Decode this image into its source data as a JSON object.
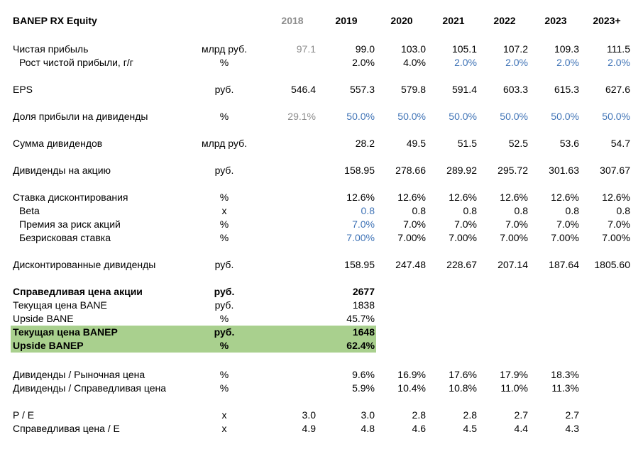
{
  "sheet": {
    "title": "BANEP RX Equity",
    "years": [
      "2018",
      "2019",
      "2020",
      "2021",
      "2022",
      "2023",
      "2023+"
    ],
    "colors": {
      "highlight": "#a9d08e",
      "input_blue": "#3f73b6",
      "muted_grey": "#8c8c8c"
    },
    "rows": {
      "net_profit": {
        "label": "Чистая прибыль",
        "unit": "млрд руб.",
        "values": [
          "97.1",
          "99.0",
          "103.0",
          "105.1",
          "107.2",
          "109.3",
          "111.5"
        ]
      },
      "net_profit_growth": {
        "label": "Рост чистой прибыли, г/г",
        "unit": "%",
        "values": [
          "",
          "2.0%",
          "4.0%",
          "2.0%",
          "2.0%",
          "2.0%",
          "2.0%"
        ]
      },
      "eps": {
        "label": "EPS",
        "unit": "руб.",
        "values": [
          "546.4",
          "557.3",
          "579.8",
          "591.4",
          "603.3",
          "615.3",
          "627.6"
        ]
      },
      "payout_ratio": {
        "label": "Доля прибыли на дивиденды",
        "unit": "%",
        "values": [
          "29.1%",
          "50.0%",
          "50.0%",
          "50.0%",
          "50.0%",
          "50.0%",
          "50.0%"
        ]
      },
      "dividends_total": {
        "label": "Сумма дивидендов",
        "unit": "млрд руб.",
        "values": [
          "",
          "28.2",
          "49.5",
          "51.5",
          "52.5",
          "53.6",
          "54.7"
        ]
      },
      "dividends_per_share": {
        "label": "Дивиденды на акцию",
        "unit": "руб.",
        "values": [
          "",
          "158.95",
          "278.66",
          "289.92",
          "295.72",
          "301.63",
          "307.67"
        ]
      },
      "discount_rate": {
        "label": "Ставка дисконтирования",
        "unit": "%",
        "values": [
          "",
          "12.6%",
          "12.6%",
          "12.6%",
          "12.6%",
          "12.6%",
          "12.6%"
        ]
      },
      "beta": {
        "label": "Beta",
        "unit": "x",
        "values": [
          "",
          "0.8",
          "0.8",
          "0.8",
          "0.8",
          "0.8",
          "0.8"
        ]
      },
      "equity_risk_premium": {
        "label": "Премия за риск акций",
        "unit": "%",
        "values": [
          "",
          "7.0%",
          "7.0%",
          "7.0%",
          "7.0%",
          "7.0%",
          "7.0%"
        ]
      },
      "risk_free_rate": {
        "label": "Безрисковая ставка",
        "unit": "%",
        "values": [
          "",
          "7.00%",
          "7.00%",
          "7.00%",
          "7.00%",
          "7.00%",
          "7.00%"
        ]
      },
      "discounted_dividends": {
        "label": "Дисконтированные дивиденды",
        "unit": "руб.",
        "values": [
          "",
          "158.95",
          "247.48",
          "228.67",
          "207.14",
          "187.64",
          "1805.60"
        ]
      },
      "fair_price": {
        "label": "Справедливая цена акции",
        "unit": "руб.",
        "value": "2677"
      },
      "price_bane": {
        "label": "Текущая цена BANE",
        "unit": "руб.",
        "value": "1838"
      },
      "upside_bane": {
        "label": "Upside BANE",
        "unit": "%",
        "value": "45.7%"
      },
      "price_banep": {
        "label": "Текущая цена BANEP",
        "unit": "руб.",
        "value": "1648"
      },
      "upside_banep": {
        "label": "Upside BANEP",
        "unit": "%",
        "value": "62.4%"
      },
      "div_market_price": {
        "label": "Дивиденды / Рыночная цена",
        "unit": "%",
        "values": [
          "",
          "9.6%",
          "16.9%",
          "17.6%",
          "17.9%",
          "18.3%",
          ""
        ]
      },
      "div_fair_price": {
        "label": "Дивиденды / Справедливая цена",
        "unit": "%",
        "values": [
          "",
          "5.9%",
          "10.4%",
          "10.8%",
          "11.0%",
          "11.3%",
          ""
        ]
      },
      "pe": {
        "label": "P / E",
        "unit": "x",
        "values": [
          "3.0",
          "3.0",
          "2.8",
          "2.8",
          "2.7",
          "2.7",
          ""
        ]
      },
      "fair_pe": {
        "label": "Справедливая цена / E",
        "unit": "x",
        "values": [
          "4.9",
          "4.8",
          "4.6",
          "4.5",
          "4.4",
          "4.3",
          ""
        ]
      }
    }
  }
}
